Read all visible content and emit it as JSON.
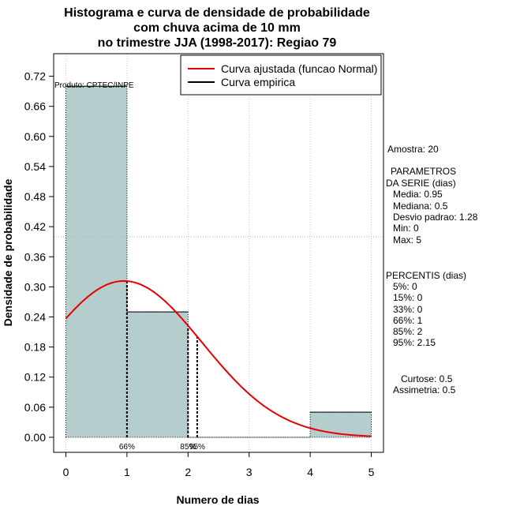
{
  "chart_data": {
    "type": "bar",
    "title_lines": [
      "Histograma e curva de densidade de probabilidade",
      "com chuva acima de 10 mm",
      "no trimestre JJA (1998-2017): Regiao 79"
    ],
    "xlabel": "Numero de dias",
    "ylabel": "Densidade de probabilidade",
    "xlim": [
      -0.2,
      5.2
    ],
    "ylim": [
      -0.03,
      0.765
    ],
    "x_ticks": [
      0,
      1,
      2,
      3,
      4,
      5
    ],
    "y_ticks": [
      "0.00",
      "0.06",
      "0.12",
      "0.18",
      "0.24",
      "0.30",
      "0.36",
      "0.42",
      "0.48",
      "0.54",
      "0.60",
      "0.66",
      "0.72"
    ],
    "bins": [
      {
        "start": 0,
        "end": 1,
        "density": 0.7
      },
      {
        "start": 1,
        "end": 2,
        "density": 0.25
      },
      {
        "start": 2,
        "end": 3,
        "density": 0.0
      },
      {
        "start": 3,
        "end": 4,
        "density": 0.0
      },
      {
        "start": 4,
        "end": 5,
        "density": 0.05
      }
    ],
    "fitted_normal": {
      "mean": 0.95,
      "sd": 1.28
    },
    "reference_hline": 0.4,
    "percentile_lines": [
      {
        "label": "66%",
        "x": 1
      },
      {
        "label": "85%",
        "x": 2
      },
      {
        "label": "95%",
        "x": 2.15
      }
    ],
    "legend": [
      {
        "label": "Curva ajustada (funcao Normal)",
        "color": "#e60000"
      },
      {
        "label": "Curva empirica",
        "color": "#000000"
      }
    ],
    "product_label": "Produto: CPTEC/INPE",
    "bar_color": "#b5cdcd",
    "curve_color": "#e60000"
  },
  "stats": {
    "sample": "Amostra: 20",
    "params_title_1": "PARAMETROS",
    "params_title_2": "DA SERIE (dias)",
    "params": [
      "Media: 0.95",
      "Mediana: 0.5",
      "Desvio padrao: 1.28",
      "Min: 0",
      "Max: 5"
    ],
    "percentiles_title": "PERCENTIS (dias)",
    "percentiles": [
      "5%: 0",
      "15%: 0",
      "33%: 0",
      "66%: 1",
      "85%: 2",
      "95%: 2.15"
    ],
    "kurtosis": "Curtose: 0.5",
    "skewness": "Assimetria: 0.5"
  }
}
